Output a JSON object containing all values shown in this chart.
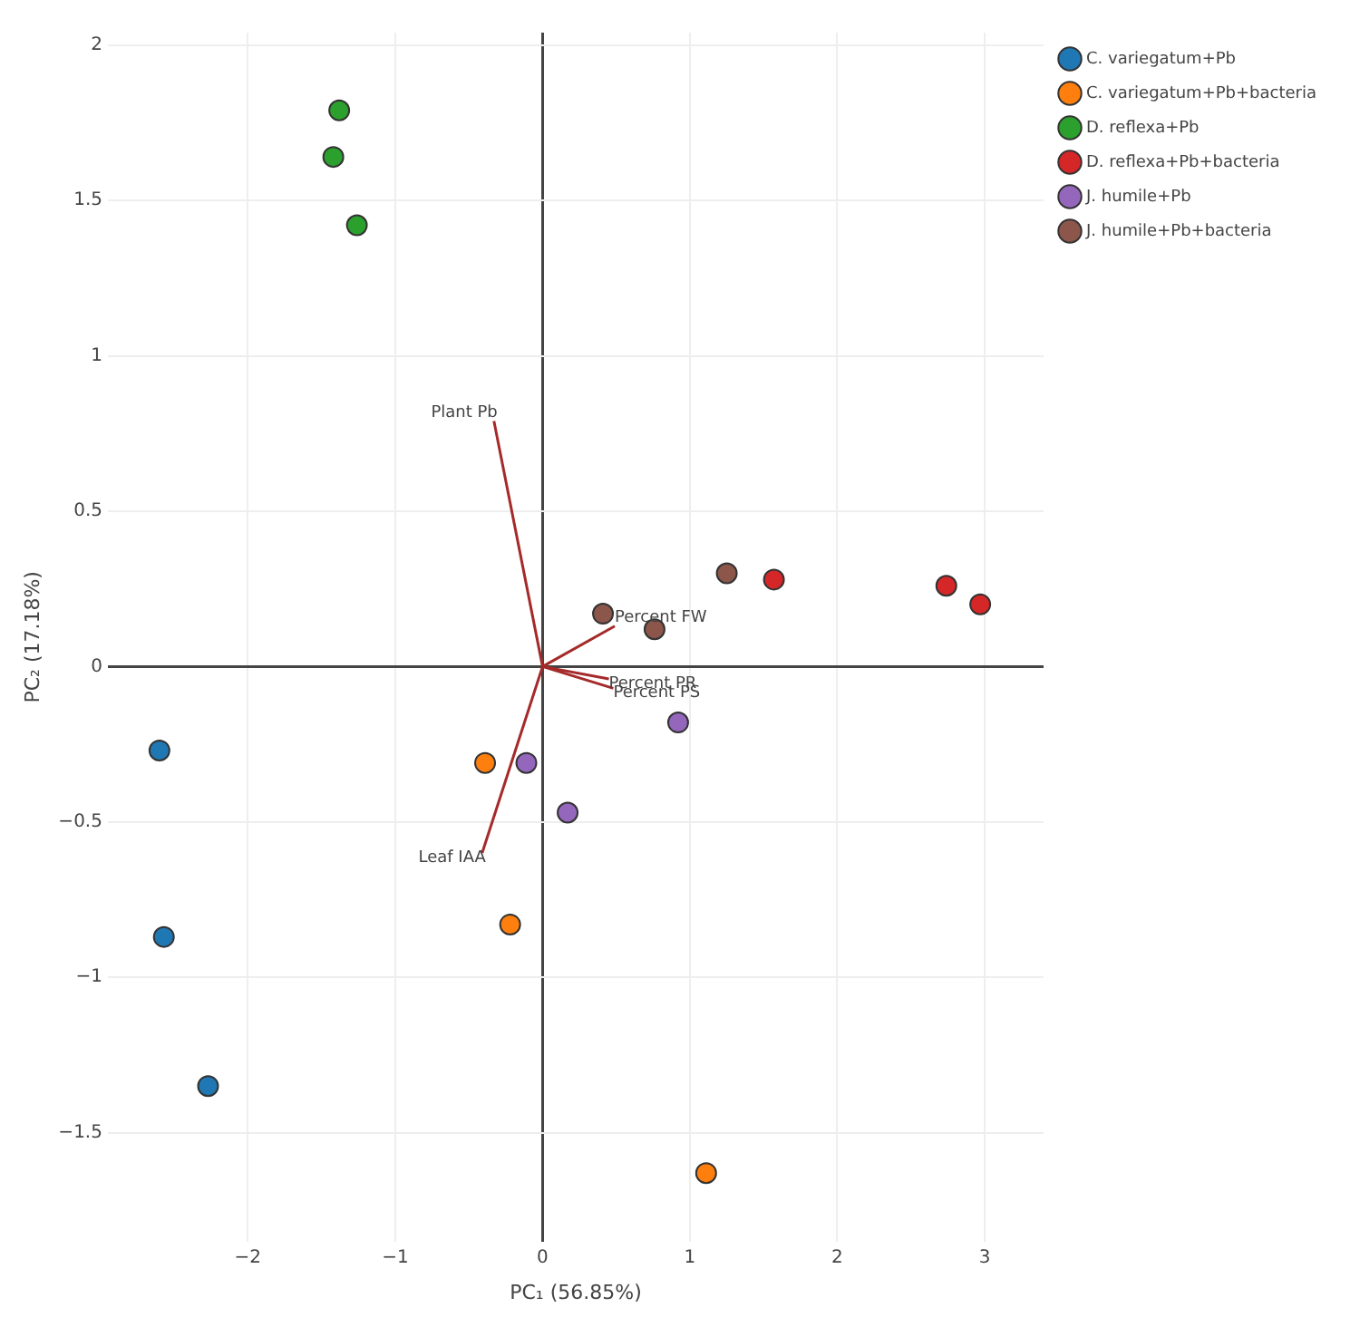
{
  "chart_data": {
    "type": "scatter",
    "xlabel": "PC₁ (56.85%)",
    "ylabel": "PC₂ (17.18%)",
    "xlim": [
      -2.95,
      3.4
    ],
    "ylim": [
      -1.85,
      2.04
    ],
    "xticks": [
      {
        "value": -2,
        "label": "−2"
      },
      {
        "value": -1,
        "label": "−1"
      },
      0,
      1,
      2,
      3
    ],
    "yticks": [
      {
        "value": -1.5,
        "label": "−1.5"
      },
      {
        "value": -1,
        "label": "−1"
      },
      {
        "value": -0.5,
        "label": "−0.5"
      },
      0,
      0.5,
      1,
      1.5,
      2
    ],
    "grid": true,
    "legend": "top right",
    "marker": "circle",
    "series": [
      {
        "name": "C. variegatum+Pb",
        "color": "#1f77b4",
        "x": [
          -2.6,
          -2.57,
          -2.27
        ],
        "values": [
          -0.27,
          -0.87,
          -1.35
        ]
      },
      {
        "name": "C. variegatum+Pb+bacteria",
        "color": "#ff7f0e",
        "x": [
          -0.39,
          -0.22,
          1.11
        ],
        "values": [
          -0.31,
          -0.83,
          -1.63
        ]
      },
      {
        "name": "D. reflexa+Pb",
        "color": "#2ca02c",
        "x": [
          -1.38,
          -1.42,
          -1.26
        ],
        "values": [
          1.79,
          1.64,
          1.42
        ]
      },
      {
        "name": "D. reflexa+Pb+bacteria",
        "color": "#d62728",
        "x": [
          1.57,
          2.74,
          2.97
        ],
        "values": [
          0.28,
          0.26,
          0.2
        ]
      },
      {
        "name": "J. humile+Pb",
        "color": "#9467bd",
        "x": [
          -0.11,
          0.17,
          0.92
        ],
        "values": [
          -0.31,
          -0.47,
          -0.18
        ]
      },
      {
        "name": "J. humile+Pb+bacteria",
        "color": "#8c564b",
        "x": [
          0.41,
          0.76,
          1.25
        ],
        "values": [
          0.17,
          0.12,
          0.3
        ]
      },
      {
        "name": "Plant Pb",
        "type": "line",
        "marker": "none",
        "color": "#a52a2a",
        "x": [
          0,
          -0.33
        ],
        "values": [
          0,
          0.79
        ]
      },
      {
        "name": "Leaf IAA",
        "type": "line",
        "marker": "none",
        "color": "#a52a2a",
        "x": [
          0,
          -0.41
        ],
        "values": [
          0,
          -0.6
        ]
      },
      {
        "name": "Percent FW",
        "type": "line",
        "marker": "none",
        "color": "#a52a2a",
        "x": [
          0,
          0.49
        ],
        "values": [
          0,
          0.13
        ]
      },
      {
        "name": "Percent PR",
        "type": "line",
        "marker": "none",
        "color": "#a52a2a",
        "x": [
          0,
          0.45
        ],
        "values": [
          0,
          -0.04
        ]
      },
      {
        "name": "Percent PS",
        "type": "line",
        "marker": "none",
        "color": "#a52a2a",
        "x": [
          0,
          0.48
        ],
        "values": [
          0,
          -0.07
        ]
      }
    ]
  }
}
